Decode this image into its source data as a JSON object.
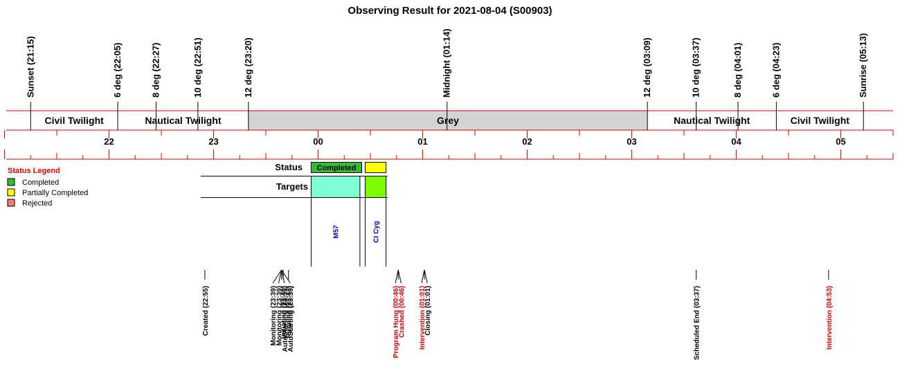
{
  "title": "Observing Result for 2021-08-04 (S00903)",
  "colors": {
    "rule": "#e00000",
    "grey_band": "#d3d3d3",
    "completed": "#33bb33",
    "partial": "#ffff00",
    "rejected": "#f08070",
    "target_m57": "#7fffd4",
    "target_cicyg": "#7cfc00",
    "target_text": "#0000cc",
    "event_alert": "#dd0000",
    "event_normal": "#000000"
  },
  "axis": {
    "start": "21:00",
    "end": "05:30"
  },
  "markers": [
    {
      "label": "Sunset (21:15)",
      "time": "21:15"
    },
    {
      "label": "6 deg (22:05)",
      "time": "22:05"
    },
    {
      "label": "8 deg (22:27)",
      "time": "22:27"
    },
    {
      "label": "10 deg (22:51)",
      "time": "22:51"
    },
    {
      "label": "12 deg (23:20)",
      "time": "23:20"
    },
    {
      "label": "Midnight (01:14)",
      "time": "01:14"
    },
    {
      "label": "12 deg (03:09)",
      "time": "03:09"
    },
    {
      "label": "10 deg (03:37)",
      "time": "03:37"
    },
    {
      "label": "8 deg (04:01)",
      "time": "04:01"
    },
    {
      "label": "6 deg (04:23)",
      "time": "04:23"
    },
    {
      "label": "Sunrise (05:13)",
      "time": "05:13"
    }
  ],
  "bands": [
    {
      "label": "Civil Twilight",
      "start": "21:15",
      "end": "22:05",
      "shaded": false
    },
    {
      "label": "Nautical Twilight",
      "start": "22:05",
      "end": "23:20",
      "shaded": false
    },
    {
      "label": "Grey",
      "start": "23:20",
      "end": "03:09",
      "shaded": true
    },
    {
      "label": "Nautical Twilight",
      "start": "03:09",
      "end": "04:23",
      "shaded": false
    },
    {
      "label": "Civil Twilight",
      "start": "04:23",
      "end": "05:13",
      "shaded": false
    }
  ],
  "hour_labels": [
    {
      "label": "22",
      "time": "22:00"
    },
    {
      "label": "23",
      "time": "23:00"
    },
    {
      "label": "00",
      "time": "00:00"
    },
    {
      "label": "01",
      "time": "01:00"
    },
    {
      "label": "02",
      "time": "02:00"
    },
    {
      "label": "03",
      "time": "03:00"
    },
    {
      "label": "04",
      "time": "04:00"
    },
    {
      "label": "05",
      "time": "05:00"
    }
  ],
  "status_header": "Status",
  "targets_header": "Targets",
  "status_blocks": [
    {
      "label": "Completed",
      "start": "23:56",
      "end": "00:25",
      "status": "completed"
    },
    {
      "label": "",
      "start": "00:27",
      "end": "00:39",
      "status": "partial"
    }
  ],
  "targets": [
    {
      "name": "M57",
      "start": "23:56",
      "end": "00:24",
      "color_key": "target_m57"
    },
    {
      "name": "CI Cyg",
      "start": "00:27",
      "end": "00:39",
      "color_key": "target_cicyg"
    }
  ],
  "legend": {
    "title": "Status Legend",
    "items": [
      {
        "label": "Completed",
        "color_key": "completed"
      },
      {
        "label": "Partially Completed",
        "color_key": "partial"
      },
      {
        "label": "Rejected",
        "color_key": "rejected"
      }
    ]
  },
  "events": [
    {
      "label": "Created (22:55)",
      "time": "22:55",
      "alert": false
    },
    {
      "label": "Monitoring (23:39)",
      "time": "23:39",
      "alert": false
    },
    {
      "label": "Monitoring (23:39)",
      "time": "23:39",
      "alert": false
    },
    {
      "label": "AutoStarting (23:39)",
      "time": "23:39",
      "alert": false
    },
    {
      "label": "AutoStarting (23:39)",
      "time": "23:39",
      "alert": false
    },
    {
      "label": "Initiating (23:40)",
      "time": "23:40",
      "alert": false
    },
    {
      "label": "Running (23:43)",
      "time": "23:43",
      "alert": false
    },
    {
      "label": "Program Hung (00:46)",
      "time": "00:46",
      "alert": true
    },
    {
      "label": "Crashed (00:46)",
      "time": "00:46",
      "alert": true
    },
    {
      "label": "Intervention (01:01)",
      "time": "01:01",
      "alert": true
    },
    {
      "label": "Closing (01:01)",
      "time": "01:01",
      "alert": false
    },
    {
      "label": "Scheduled End (03:37)",
      "time": "03:37",
      "alert": false
    },
    {
      "label": "Intervention (04:53)",
      "time": "04:53",
      "alert": true
    }
  ]
}
